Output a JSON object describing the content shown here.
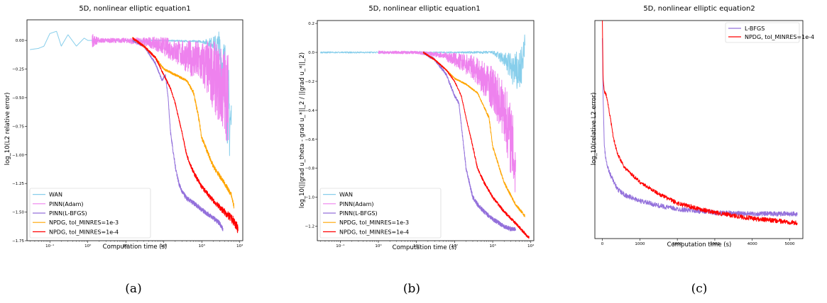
{
  "chart_data": [
    {
      "type": "line",
      "panel": "a",
      "caption": "(a)",
      "title": "5D, nonlinear elliptic equation1",
      "xlabel": "Computation time (s)",
      "ylabel": "log_10(L2 relative error)",
      "xscale": "log",
      "xlim": [
        0.025,
        12000
      ],
      "ylim": [
        -1.75,
        0.18
      ],
      "xticks": [
        {
          "v": 0.1,
          "label": "10⁻¹"
        },
        {
          "v": 1,
          "label": "10⁰"
        },
        {
          "v": 10,
          "label": "10¹"
        },
        {
          "v": 100,
          "label": "10²"
        },
        {
          "v": 1000,
          "label": "10³"
        },
        {
          "v": 10000,
          "label": "10⁴"
        }
      ],
      "yticks": [
        {
          "v": 0.0,
          "label": "0.00"
        },
        {
          "v": -0.25,
          "label": "−0.25"
        },
        {
          "v": -0.5,
          "label": "−0.50"
        },
        {
          "v": -0.75,
          "label": "−0.75"
        },
        {
          "v": -1.0,
          "label": "−1.00"
        },
        {
          "v": -1.25,
          "label": "−1.25"
        },
        {
          "v": -1.5,
          "label": "−1.50"
        },
        {
          "v": -1.75,
          "label": "−1.75"
        }
      ],
      "legend_position": "lower-left",
      "series": [
        {
          "name": "WAN",
          "color": "#87ceeb",
          "x": [
            0.03,
            0.05,
            0.07,
            0.1,
            0.15,
            0.2,
            0.3,
            0.5,
            0.8,
            1,
            3,
            10,
            100,
            1000,
            2000,
            3000,
            4000,
            5000,
            6000
          ],
          "y": [
            -0.08,
            -0.07,
            -0.05,
            0.06,
            0.08,
            -0.05,
            0.05,
            -0.05,
            0.02,
            0.0,
            0.0,
            0.0,
            0.0,
            -0.01,
            -0.02,
            -0.1,
            -0.3,
            -0.6,
            -0.75
          ],
          "noise": [
            0,
            0,
            0,
            0,
            0,
            0,
            0,
            0,
            0,
            0,
            0.005,
            0.005,
            0.005,
            0.01,
            0.05,
            0.2,
            0.35,
            0.4,
            0.4
          ]
        },
        {
          "name": "PINN(Adam)",
          "color": "#ee82ee",
          "x": [
            1.3,
            2,
            10,
            50,
            100,
            300,
            1000,
            2000,
            3000,
            4000,
            5000
          ],
          "y": [
            0.0,
            0.0,
            0.0,
            -0.02,
            -0.05,
            -0.12,
            -0.2,
            -0.3,
            -0.4,
            -0.45,
            -0.5
          ],
          "noise": [
            0.06,
            0.02,
            0.02,
            0.05,
            0.08,
            0.12,
            0.2,
            0.3,
            0.35,
            0.4,
            0.4
          ]
        },
        {
          "name": "PINN(L-BFGS)",
          "color": "#9370db",
          "x": [
            15,
            30,
            60,
            90,
            110,
            130,
            150,
            200,
            250,
            300,
            400,
            600,
            800,
            1000,
            2000,
            3000,
            3600
          ],
          "y": [
            0.0,
            -0.05,
            -0.2,
            -0.35,
            -0.3,
            -0.5,
            -0.8,
            -1.1,
            -1.25,
            -1.32,
            -1.38,
            -1.42,
            -1.45,
            -1.48,
            -1.55,
            -1.6,
            -1.65
          ],
          "noise": [
            0.01,
            0.01,
            0.01,
            0.01,
            0.01,
            0.01,
            0.02,
            0.02,
            0.02,
            0.02,
            0.02,
            0.02,
            0.02,
            0.02,
            0.02,
            0.02,
            0.02
          ]
        },
        {
          "name": "NPDG, tol_MINRES=1e-3",
          "color": "#ffa500",
          "x": [
            15,
            30,
            60,
            100,
            200,
            400,
            600,
            800,
            1000,
            2000,
            4000,
            6000,
            7000
          ],
          "y": [
            0.02,
            -0.05,
            -0.15,
            -0.25,
            -0.3,
            -0.35,
            -0.45,
            -0.65,
            -0.85,
            -1.1,
            -1.25,
            -1.35,
            -1.45
          ],
          "noise": [
            0.01,
            0.01,
            0.01,
            0.01,
            0.01,
            0.01,
            0.015,
            0.02,
            0.02,
            0.02,
            0.02,
            0.02,
            0.02
          ]
        },
        {
          "name": "NPDG, tol_MINRES=1e-4",
          "color": "#ff0000",
          "x": [
            15,
            30,
            60,
            100,
            150,
            200,
            300,
            400,
            600,
            1000,
            2000,
            4000,
            7000,
            9000
          ],
          "y": [
            0.02,
            -0.05,
            -0.15,
            -0.3,
            -0.42,
            -0.55,
            -0.8,
            -1.0,
            -1.15,
            -1.28,
            -1.4,
            -1.5,
            -1.58,
            -1.65
          ],
          "noise": [
            0.01,
            0.01,
            0.01,
            0.01,
            0.01,
            0.01,
            0.01,
            0.015,
            0.02,
            0.02,
            0.02,
            0.03,
            0.04,
            0.04
          ]
        }
      ]
    },
    {
      "type": "line",
      "panel": "b",
      "caption": "(b)",
      "title": "5D, nonlinear elliptic equation1",
      "xlabel": "Computation time (s)",
      "ylabel": "log_10(||grad u_theta - grad u_*||_2 / ||grad u_*||_2)",
      "xscale": "log",
      "xlim": [
        0.025,
        12000
      ],
      "ylim": [
        -1.3,
        0.22
      ],
      "xticks": [
        {
          "v": 0.1,
          "label": "10⁻¹"
        },
        {
          "v": 1,
          "label": "10⁰"
        },
        {
          "v": 10,
          "label": "10¹"
        },
        {
          "v": 100,
          "label": "10²"
        },
        {
          "v": 1000,
          "label": "10³"
        },
        {
          "v": 10000,
          "label": "10⁴"
        }
      ],
      "yticks": [
        {
          "v": 0.2,
          "label": "0.2"
        },
        {
          "v": 0.0,
          "label": "0.0"
        },
        {
          "v": -0.2,
          "label": "−0.2"
        },
        {
          "v": -0.4,
          "label": "−0.4"
        },
        {
          "v": -0.6,
          "label": "−0.6"
        },
        {
          "v": -0.8,
          "label": "−0.8"
        },
        {
          "v": -1.0,
          "label": "−1.0"
        },
        {
          "v": -1.2,
          "label": "−1.2"
        }
      ],
      "legend_position": "lower-left",
      "series": [
        {
          "name": "WAN",
          "color": "#87ceeb",
          "x": [
            0.03,
            0.1,
            1,
            10,
            100,
            1000,
            2000,
            3000,
            4000,
            6000,
            7000
          ],
          "y": [
            0.0,
            0.0,
            0.0,
            0.0,
            0.0,
            0.0,
            -0.05,
            -0.1,
            -0.15,
            -0.1,
            0.05
          ],
          "noise": [
            0.005,
            0.005,
            0.005,
            0.005,
            0.005,
            0.01,
            0.05,
            0.1,
            0.15,
            0.15,
            0.12
          ]
        },
        {
          "name": "PINN(Adam)",
          "color": "#ee82ee",
          "x": [
            1,
            10,
            50,
            100,
            300,
            1000,
            2000,
            3000,
            4000
          ],
          "y": [
            0.0,
            0.0,
            -0.02,
            -0.05,
            -0.1,
            -0.25,
            -0.4,
            -0.6,
            -0.8
          ],
          "noise": [
            0.01,
            0.01,
            0.02,
            0.05,
            0.08,
            0.15,
            0.2,
            0.25,
            0.25
          ]
        },
        {
          "name": "PINN(L-BFGS)",
          "color": "#9370db",
          "x": [
            15,
            30,
            60,
            100,
            130,
            150,
            200,
            300,
            400,
            600,
            1000,
            2000,
            3000,
            4000
          ],
          "y": [
            0.0,
            -0.05,
            -0.15,
            -0.3,
            -0.35,
            -0.5,
            -0.8,
            -1.0,
            -1.05,
            -1.1,
            -1.15,
            -1.2,
            -1.22,
            -1.22
          ],
          "noise": [
            0.01,
            0.01,
            0.01,
            0.01,
            0.01,
            0.01,
            0.015,
            0.015,
            0.015,
            0.015,
            0.015,
            0.015,
            0.015,
            0.01
          ]
        },
        {
          "name": "NPDG, tol_MINRES=1e-3",
          "color": "#ffa500",
          "x": [
            15,
            30,
            60,
            100,
            200,
            400,
            800,
            1000,
            2000,
            4000,
            7000
          ],
          "y": [
            0.0,
            -0.05,
            -0.12,
            -0.18,
            -0.22,
            -0.28,
            -0.45,
            -0.65,
            -0.9,
            -1.05,
            -1.13
          ],
          "noise": [
            0.005,
            0.005,
            0.005,
            0.005,
            0.005,
            0.005,
            0.01,
            0.01,
            0.01,
            0.01,
            0.01
          ]
        },
        {
          "name": "NPDG, tol_MINRES=1e-4",
          "color": "#ff0000",
          "x": [
            15,
            30,
            60,
            100,
            150,
            200,
            300,
            400,
            600,
            1000,
            2000,
            4000,
            7000,
            9000
          ],
          "y": [
            0.0,
            -0.05,
            -0.12,
            -0.2,
            -0.3,
            -0.45,
            -0.65,
            -0.8,
            -0.9,
            -1.0,
            -1.1,
            -1.18,
            -1.25,
            -1.28
          ],
          "noise": [
            0.005,
            0.005,
            0.005,
            0.005,
            0.005,
            0.005,
            0.01,
            0.01,
            0.01,
            0.01,
            0.01,
            0.01,
            0.01,
            0.01
          ]
        }
      ]
    },
    {
      "type": "line",
      "panel": "c",
      "caption": "(c)",
      "title": "5D, nonlinear elliptic equation2",
      "xlabel": "Computation time (s)",
      "ylabel": "log_10(relative L2 error)",
      "xscale": "linear",
      "xlim": [
        -200,
        5350
      ],
      "ylim": [
        -2.1,
        -0.25
      ],
      "xticks": [
        {
          "v": 0,
          "label": "0"
        },
        {
          "v": 1000,
          "label": "1000"
        },
        {
          "v": 2000,
          "label": "2000"
        },
        {
          "v": 3000,
          "label": "3000"
        },
        {
          "v": 4000,
          "label": "4000"
        },
        {
          "v": 5000,
          "label": "5000"
        }
      ],
      "yticks": [],
      "legend_position": "upper-right",
      "series": [
        {
          "name": "L-BFGS",
          "color": "#9370db",
          "x": [
            0,
            20,
            50,
            100,
            200,
            400,
            600,
            1000,
            1500,
            2000,
            3000,
            4000,
            5000,
            5200
          ],
          "y": [
            -0.4,
            -0.9,
            -1.3,
            -1.45,
            -1.55,
            -1.68,
            -1.73,
            -1.78,
            -1.82,
            -1.85,
            -1.88,
            -1.89,
            -1.89,
            -1.89
          ],
          "noise": [
            0,
            0.02,
            0.02,
            0.02,
            0.02,
            0.02,
            0.02,
            0.02,
            0.02,
            0.02,
            0.02,
            0.02,
            0.02,
            0.02
          ]
        },
        {
          "name": "NPDG, tol_MINRES=1e-4",
          "color": "#ff0000",
          "x": [
            0,
            20,
            50,
            100,
            200,
            300,
            400,
            600,
            1000,
            1500,
            2000,
            3000,
            4000,
            5000,
            5200
          ],
          "y": [
            -0.25,
            -0.75,
            -0.85,
            -0.88,
            -1.05,
            -1.25,
            -1.38,
            -1.5,
            -1.62,
            -1.72,
            -1.8,
            -1.88,
            -1.93,
            -1.96,
            -1.97
          ],
          "noise": [
            0,
            0.015,
            0.015,
            0.015,
            0.015,
            0.015,
            0.015,
            0.015,
            0.015,
            0.015,
            0.02,
            0.02,
            0.02,
            0.02,
            0.02
          ]
        }
      ]
    }
  ]
}
